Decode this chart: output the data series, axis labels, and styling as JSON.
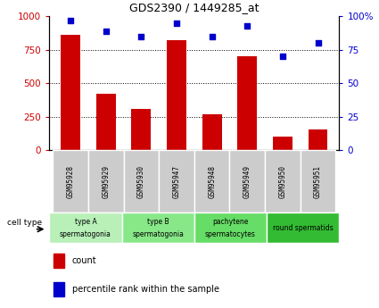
{
  "title": "GDS2390 / 1449285_at",
  "samples": [
    "GSM95928",
    "GSM95929",
    "GSM95930",
    "GSM95947",
    "GSM95948",
    "GSM95949",
    "GSM95950",
    "GSM95951"
  ],
  "counts": [
    860,
    420,
    305,
    820,
    270,
    700,
    100,
    155
  ],
  "percentiles": [
    97,
    89,
    85,
    95,
    85,
    93,
    70,
    80
  ],
  "ylim_left": [
    0,
    1000
  ],
  "ylim_right": [
    0,
    100
  ],
  "yticks_left": [
    0,
    250,
    500,
    750,
    1000
  ],
  "yticks_right": [
    0,
    25,
    50,
    75,
    100
  ],
  "cell_groups": [
    {
      "label": "type A\nspermatogonia",
      "color": "#b8f0b8",
      "span": [
        0,
        2
      ]
    },
    {
      "label": "type B\nspermatogonia",
      "color": "#88e888",
      "span": [
        2,
        4
      ]
    },
    {
      "label": "pachytene\nspermatocytes",
      "color": "#66dd66",
      "span": [
        4,
        6
      ]
    },
    {
      "label": "round spermatids",
      "color": "#33bb33",
      "span": [
        6,
        8
      ]
    }
  ],
  "bar_color": "#cc0000",
  "dot_color": "#0000cc",
  "bar_width": 0.55,
  "tick_color_left": "#cc0000",
  "tick_color_right": "#0000cc",
  "background_xtick": "#cccccc",
  "grid_color": "#000000",
  "cell_type_label": "cell type"
}
